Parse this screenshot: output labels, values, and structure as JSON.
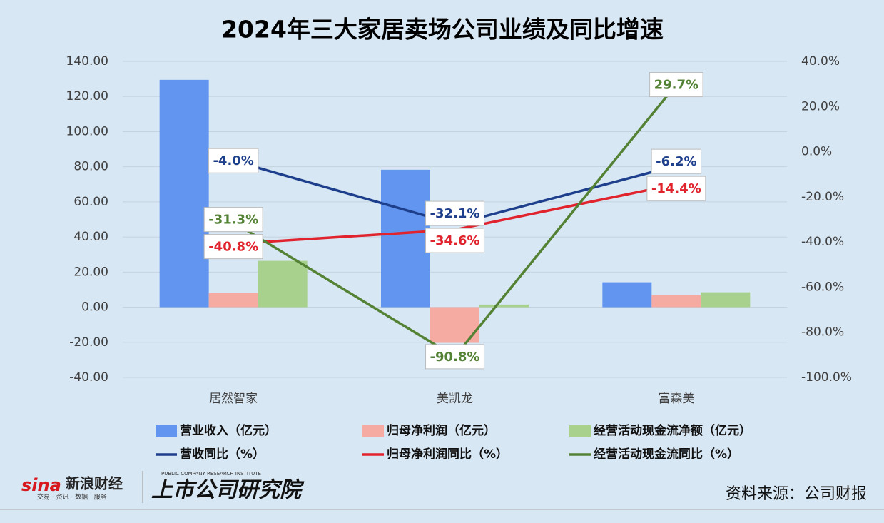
{
  "chart_data": {
    "type": "combo",
    "title": "2024年三大家居卖场公司业绩及同比增速",
    "categories": [
      "居然智家",
      "美凯龙",
      "富森美"
    ],
    "ylim": [
      -40,
      140
    ],
    "yticks": [
      {
        "value": -40,
        "label": "-40.00"
      },
      {
        "value": -20,
        "label": "-20.00"
      },
      {
        "value": 0,
        "label": "0.00"
      },
      {
        "value": 20,
        "label": "20.00"
      },
      {
        "value": 40,
        "label": "40.00"
      },
      {
        "value": 60,
        "label": "60.00"
      },
      {
        "value": 80,
        "label": "80.00"
      },
      {
        "value": 100,
        "label": "100.00"
      },
      {
        "value": 120,
        "label": "120.00"
      },
      {
        "value": 140,
        "label": "140.00"
      }
    ],
    "y2lim": [
      -100,
      40
    ],
    "y2ticks": [
      {
        "value": -100,
        "label": "-100.0%"
      },
      {
        "value": -80,
        "label": "-80.0%"
      },
      {
        "value": -60,
        "label": "-60.0%"
      },
      {
        "value": -40,
        "label": "-40.0%"
      },
      {
        "value": -20,
        "label": "-20.0%"
      },
      {
        "value": 0,
        "label": "0.0%"
      },
      {
        "value": 20,
        "label": "20.0%"
      },
      {
        "value": 40,
        "label": "40.0%"
      }
    ],
    "grid": true,
    "legend": "bottom",
    "series": [
      {
        "name": "营业收入（亿元）",
        "type": "bar",
        "color": "#6295f0",
        "values": [
          129.5,
          78.3,
          14.2
        ]
      },
      {
        "name": "归母净利润（亿元）",
        "type": "bar",
        "color": "#f5aaa2",
        "values": [
          8.1,
          -20.3,
          6.9
        ]
      },
      {
        "name": "经营活动现金流净额（亿元）",
        "type": "bar",
        "color": "#a9d18e",
        "values": [
          26.4,
          1.5,
          8.5
        ]
      },
      {
        "name": "营收同比（%）",
        "type": "line",
        "axis": "y2",
        "color": "#1e3f8c",
        "values": [
          -4.0,
          -32.1,
          -6.2
        ],
        "value_labels": [
          "-4.0%",
          "-32.1%",
          "-6.2%"
        ]
      },
      {
        "name": "归母净利润同比（%）",
        "type": "line",
        "axis": "y2",
        "color": "#e0232d",
        "values": [
          -40.8,
          -34.6,
          -14.4
        ],
        "value_labels": [
          "-40.8%",
          "-34.6%",
          "-14.4%"
        ]
      },
      {
        "name": "经营活动现金流同比（%）",
        "type": "line",
        "axis": "y2",
        "color": "#548235",
        "values": [
          -31.3,
          -90.8,
          29.7
        ],
        "value_labels": [
          "-31.3%",
          "-90.8%",
          "29.7%"
        ]
      }
    ],
    "source": "资料来源：公司财报"
  },
  "branding": {
    "sina": "sina",
    "sina_name": "新浪财经",
    "sina_tagline": "交易 · 资讯 · 数据 · 服务",
    "institute": "上市公司研究院",
    "institute_en": "PUBLIC COMPANY RESEARCH INSTITUTE"
  }
}
